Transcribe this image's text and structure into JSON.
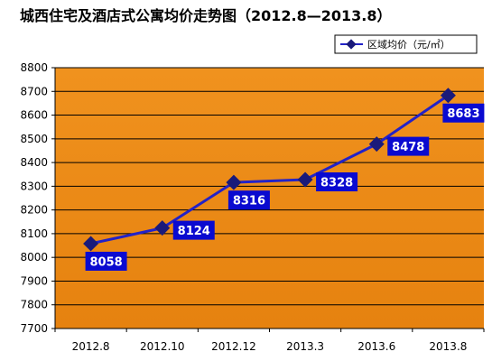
{
  "chart_data": {
    "type": "line",
    "title": "城西住宅及酒店式公寓均价走势图（2012.8—2013.8）",
    "xlabel": "",
    "ylabel": "",
    "categories": [
      "2012.8",
      "2012.10",
      "2012.12",
      "2013.3",
      "2013.6",
      "2013.8"
    ],
    "series": [
      {
        "name": "区域均价（元/㎡）",
        "values": [
          8058,
          8124,
          8316,
          8328,
          8478,
          8683
        ]
      }
    ],
    "ylim": [
      7700,
      8800
    ],
    "yticks": [
      7700,
      7800,
      7900,
      8000,
      8100,
      8200,
      8300,
      8400,
      8500,
      8600,
      8700,
      8800
    ],
    "grid": true,
    "legend": "top-right",
    "colors": {
      "plot_background_top": "#f0921e",
      "plot_background_bottom": "#e6820f",
      "gridline": "#000000",
      "series_line": "#2222c8",
      "marker": "#1a1a7a",
      "label_background": "#0a0ad0",
      "label_text": "#ffffff"
    },
    "data_label_placement": [
      "below",
      "right",
      "below",
      "right",
      "right",
      "below"
    ]
  }
}
